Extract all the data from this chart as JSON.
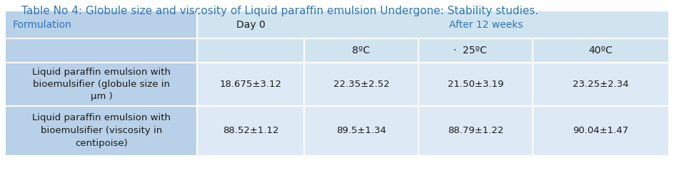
{
  "title": "Table No 4: Globule size and viscosity of Liquid paraffin emulsion Undergone: Stability studies.",
  "title_color": "#2e75b6",
  "title_fontsize": 11,
  "bg_color": "#b8d0e8",
  "cell_bg_light": "#d0e4f0",
  "cell_bg_lighter": "#ddeaf5",
  "fig_bg": "#ffffff",
  "row1_label": "Liquid paraffin emulsion with\nbioemulsifier (globule size in\nμm )",
  "row2_label": "Liquid paraffin emulsion with\nbioemulsifier (viscosity in\ncentipoise)",
  "row1_data": [
    "18.675±3.12",
    "22.35±2.52",
    "21.50±3.19",
    "23.25±2.34"
  ],
  "row2_data": [
    "88.52±1.12",
    "89.5±1.34",
    "88.79±1.22",
    "90.04±1.47"
  ],
  "text_color": "#1a1a1a",
  "formulation_color": "#2e75b6",
  "header_color": "#2e75b6",
  "border_color": "#ffffff"
}
